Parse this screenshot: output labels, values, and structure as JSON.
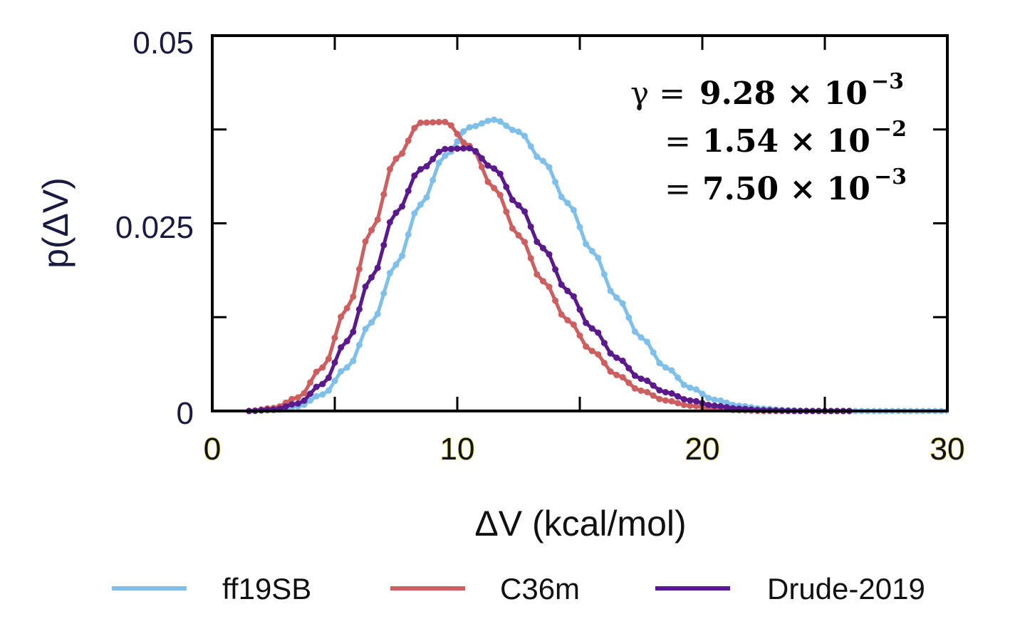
{
  "chart_data": {
    "type": "line",
    "xlabel": "ΔV (kcal/mol)",
    "ylabel": "p(ΔV)",
    "xlim": [
      0,
      30
    ],
    "ylim": [
      0,
      0.05
    ],
    "x_ticks": [
      "0",
      "10",
      "20",
      "30"
    ],
    "y_ticks": [
      "0",
      "0.025",
      "0.05"
    ],
    "grid": false,
    "legend_position": "bottom",
    "series": [
      {
        "name": "ff19SB",
        "color": "#7ec0ea",
        "x": [
          1.5,
          2.5,
          3.5,
          4.5,
          5.5,
          6.5,
          7.5,
          8.5,
          9.5,
          10.5,
          11.5,
          12.5,
          13.5,
          14.5,
          15.5,
          16.5,
          17.5,
          18.5,
          19.5,
          20.5,
          21.5,
          22.5,
          23.5,
          24.5,
          25.5,
          27.0,
          30.0
        ],
        "y": [
          0.0,
          0.0001,
          0.0006,
          0.0022,
          0.0058,
          0.0118,
          0.0195,
          0.0275,
          0.034,
          0.0378,
          0.0388,
          0.0372,
          0.0333,
          0.0277,
          0.0213,
          0.0151,
          0.0098,
          0.0058,
          0.0031,
          0.0015,
          0.0007,
          0.0003,
          0.0001,
          0.0,
          0.0,
          0.0,
          0.0
        ]
      },
      {
        "name": "C36m",
        "color": "#cd5f60",
        "x": [
          1.5,
          2.5,
          3.5,
          4.5,
          5.5,
          6.5,
          7.5,
          8.5,
          9.5,
          10.5,
          11.5,
          12.5,
          13.5,
          14.5,
          15.5,
          16.5,
          17.5,
          18.5,
          19.5,
          20.5,
          21.5,
          22.5,
          24.0,
          26.0
        ],
        "y": [
          0.0,
          0.0004,
          0.0018,
          0.0058,
          0.0137,
          0.0241,
          0.0336,
          0.0384,
          0.0385,
          0.0353,
          0.0297,
          0.0234,
          0.0173,
          0.0121,
          0.008,
          0.0048,
          0.0027,
          0.0014,
          0.0007,
          0.0003,
          0.0001,
          0.0,
          0.0,
          0.0
        ]
      },
      {
        "name": "Drude-2019",
        "color": "#5b1a8c",
        "x": [
          1.5,
          2.5,
          3.5,
          4.5,
          5.5,
          6.5,
          7.5,
          8.5,
          9.5,
          10.5,
          11.5,
          12.5,
          13.5,
          14.5,
          15.5,
          16.5,
          17.5,
          18.5,
          19.5,
          20.5,
          21.5,
          22.5,
          24.0,
          26.0
        ],
        "y": [
          0.0,
          0.0002,
          0.001,
          0.0036,
          0.0093,
          0.0178,
          0.0264,
          0.0322,
          0.0349,
          0.035,
          0.0323,
          0.0274,
          0.0217,
          0.016,
          0.011,
          0.0071,
          0.0043,
          0.0025,
          0.0014,
          0.0007,
          0.0003,
          0.0001,
          0.0,
          0.0
        ]
      }
    ]
  },
  "annotations": [
    {
      "prefix": "γ =",
      "value": "9.28 × 10",
      "exp": "−3",
      "color": "#7aadd6"
    },
    {
      "prefix": "=",
      "value": "1.54 × 10",
      "exp": "−2",
      "color": "#c25c58"
    },
    {
      "prefix": "=",
      "value": "7.50 × 10",
      "exp": "−3",
      "color": "#5a2a8a"
    }
  ]
}
